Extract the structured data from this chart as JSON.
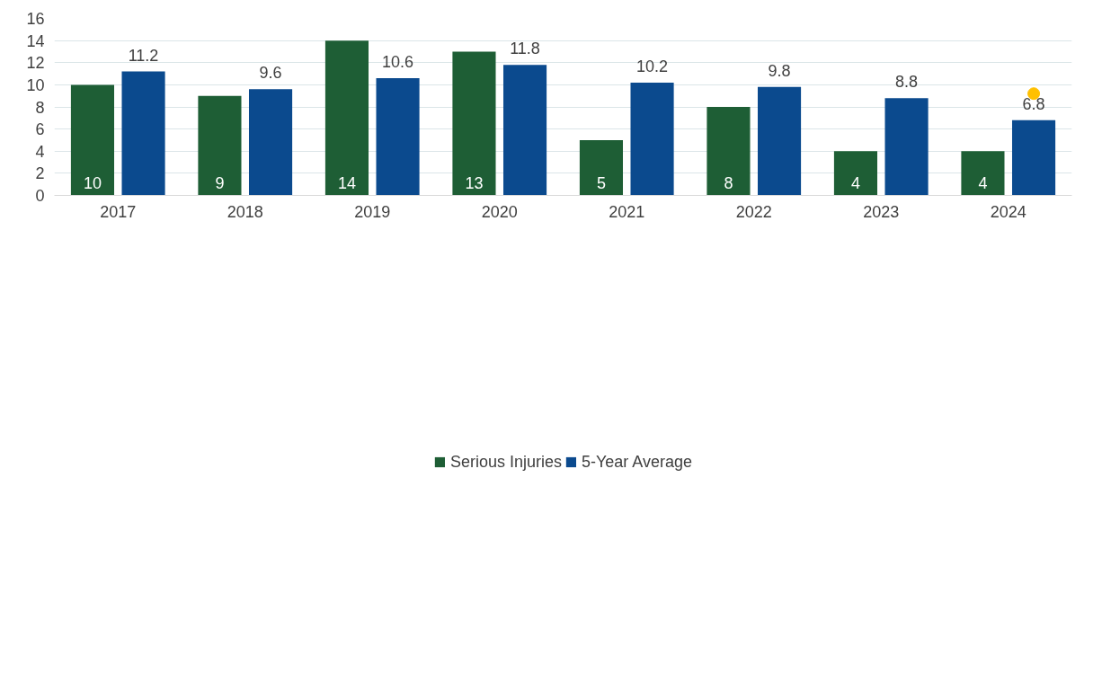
{
  "chart_data": {
    "type": "bar",
    "categories": [
      "2017",
      "2018",
      "2019",
      "2020",
      "2021",
      "2022",
      "2023",
      "2024"
    ],
    "series": [
      {
        "name": "Serious Injuries",
        "color": "#1e5e35",
        "values": [
          10,
          9,
          14,
          13,
          5,
          8,
          4,
          4
        ],
        "value_labels": [
          "10",
          "9",
          "14",
          "13",
          "5",
          "8",
          "4",
          "4"
        ]
      },
      {
        "name": "5-Year Average",
        "color": "#0b4a8e",
        "values": [
          11.2,
          9.6,
          10.6,
          11.8,
          10.2,
          9.8,
          8.8,
          6.8
        ],
        "value_labels": [
          "11.2",
          "9.6",
          "10.6",
          "11.8",
          "10.2",
          "9.8",
          "8.8",
          "6.8"
        ]
      },
      {
        "type": "scatter",
        "color": "#ffc000",
        "values": [
          null,
          null,
          null,
          null,
          null,
          null,
          null,
          9.2
        ]
      }
    ],
    "ylim": [
      0,
      16
    ],
    "yticks": [
      0,
      2,
      4,
      6,
      8,
      10,
      12,
      14,
      16
    ],
    "grid": "y",
    "legend": "bottom",
    "marker": "circle"
  }
}
